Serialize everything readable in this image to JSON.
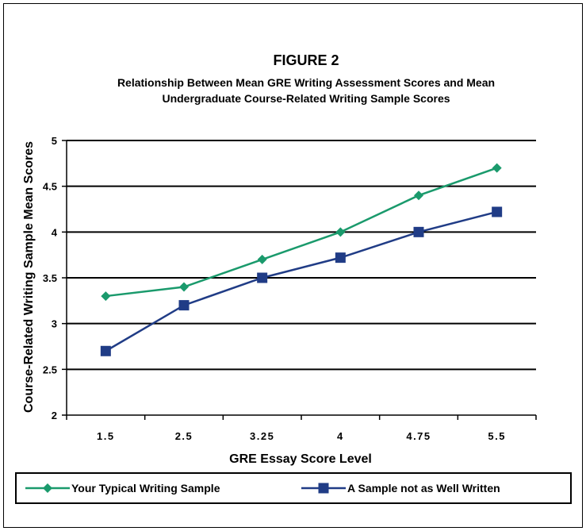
{
  "chart_data": {
    "type": "line",
    "title": "FIGURE 2",
    "subtitle_lines": [
      "Relationship Between Mean GRE Writing Assessment Scores and Mean",
      "Undergraduate Course-Related Writing Sample Scores"
    ],
    "xlabel": "GRE Essay Score Level",
    "ylabel": "Course-Related Writing Sample Mean Scores",
    "categories": [
      "1.5",
      "2.5",
      "3.25",
      "4",
      "4.75",
      "5.5"
    ],
    "ylim": [
      2,
      5
    ],
    "yticks": [
      "2",
      "2.5",
      "3",
      "3.5",
      "4",
      "4.5",
      "5"
    ],
    "grid": true,
    "legend_position": "bottom",
    "series": [
      {
        "name": "Your Typical Writing Sample",
        "values": [
          3.3,
          3.4,
          3.7,
          4.0,
          4.4,
          4.7
        ],
        "color": "#1a9a6c",
        "marker": "diamond"
      },
      {
        "name": "A Sample not as Well Written",
        "values": [
          2.7,
          3.2,
          3.5,
          3.72,
          4.0,
          4.22
        ],
        "color": "#203c86",
        "marker": "square"
      }
    ]
  }
}
